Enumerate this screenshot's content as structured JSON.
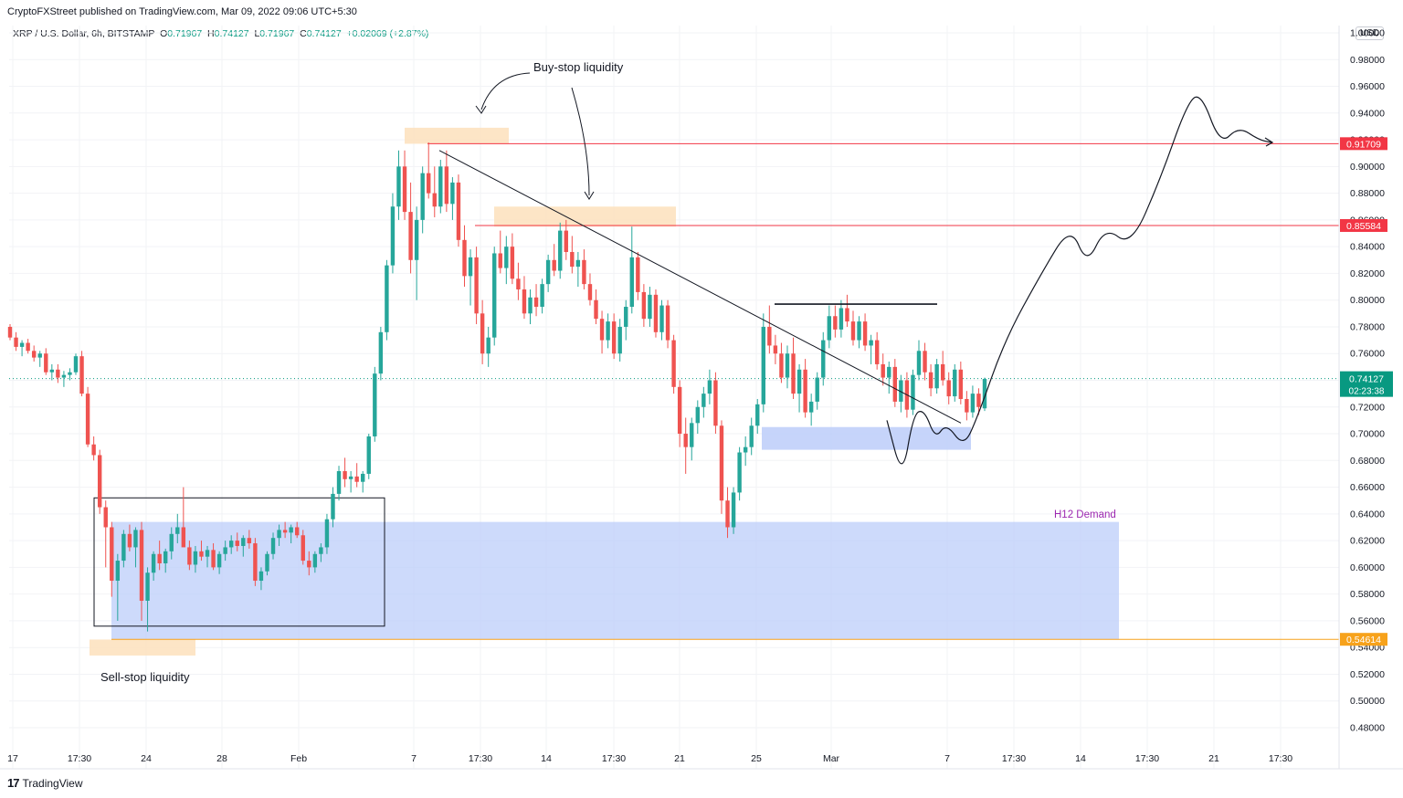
{
  "header": {
    "published_by": "CryptoFXStreet published on TradingView.com, Mar 09, 2022 09:06 UTC+5:30"
  },
  "symbol": {
    "name": "XRP / U.S. Dollar, 6h, BITSTAMP",
    "open_label": "O",
    "open": "0.71967",
    "high_label": "H",
    "high": "0.74127",
    "low_label": "L",
    "low": "0.71967",
    "close_label": "C",
    "close": "0.74127",
    "change": "+0.02069 (+2.87%)"
  },
  "currency_badge": "USD",
  "footer": {
    "brand": "TradingView",
    "logo_icon": "tradingview-logo-icon"
  },
  "colors": {
    "up": "#26a69a",
    "down": "#ef5350",
    "level_red": "#f23645",
    "level_orange": "#f7a21b",
    "demand_fill": "#bccdf9",
    "liquidity_fill": "#fde2c0",
    "current_price": "#089981",
    "h12_label": "#9c27b0"
  },
  "chart_data": {
    "type": "candlestick",
    "title": "XRP / U.S. Dollar, 6h, BITSTAMP",
    "ylim": [
      0.47,
      1.0
    ],
    "y_ticks": [
      "0.48000",
      "0.50000",
      "0.52000",
      "0.54000",
      "0.56000",
      "0.58000",
      "0.60000",
      "0.62000",
      "0.64000",
      "0.66000",
      "0.68000",
      "0.70000",
      "0.72000",
      "0.74000",
      "0.76000",
      "0.78000",
      "0.80000",
      "0.82000",
      "0.84000",
      "0.86000",
      "0.88000",
      "0.90000",
      "0.92000",
      "0.94000",
      "0.96000",
      "0.98000",
      "1.00000"
    ],
    "x_ticks": [
      "17",
      "17:30",
      "24",
      "28",
      "Feb",
      "7",
      "17:30",
      "14",
      "17:30",
      "21",
      "25",
      "Mar",
      "7",
      "17:30",
      "14",
      "17:30",
      "21",
      "17:30"
    ],
    "price_levels": [
      {
        "label": "0.91709",
        "value": 0.91709,
        "color": "#f23645"
      },
      {
        "label": "0.85584",
        "value": 0.85584,
        "color": "#f23645"
      },
      {
        "label": "0.54614",
        "value": 0.54614,
        "color": "#f7a21b"
      }
    ],
    "current_price": {
      "label": "0.74127",
      "value": 0.74127,
      "countdown": "02:23:38"
    },
    "annotations": {
      "buy_stop": "Buy-stop liquidity",
      "sell_stop": "Sell-stop liquidity",
      "demand": "H12 Demand"
    },
    "zones": [
      {
        "name": "h12-demand",
        "y0": 0.546,
        "y1": 0.634,
        "bar0": 0,
        "bar1": 0
      },
      {
        "name": "small-demand",
        "y0": 0.688,
        "y1": 0.705
      },
      {
        "name": "buy-stop-top",
        "y0": 0.917,
        "y1": 0.929
      },
      {
        "name": "buy-stop-mid",
        "y0": 0.855,
        "y1": 0.87
      },
      {
        "name": "sell-stop",
        "y0": 0.534,
        "y1": 0.546
      }
    ],
    "candles": [
      [
        0.78,
        0.782,
        0.77,
        0.772
      ],
      [
        0.772,
        0.776,
        0.762,
        0.765
      ],
      [
        0.765,
        0.77,
        0.758,
        0.768
      ],
      [
        0.768,
        0.771,
        0.76,
        0.762
      ],
      [
        0.762,
        0.766,
        0.754,
        0.757
      ],
      [
        0.757,
        0.762,
        0.75,
        0.76
      ],
      [
        0.76,
        0.764,
        0.744,
        0.746
      ],
      [
        0.746,
        0.752,
        0.74,
        0.748
      ],
      [
        0.748,
        0.752,
        0.738,
        0.742
      ],
      [
        0.742,
        0.747,
        0.735,
        0.744
      ],
      [
        0.744,
        0.749,
        0.74,
        0.746
      ],
      [
        0.746,
        0.76,
        0.744,
        0.758
      ],
      [
        0.758,
        0.762,
        0.728,
        0.73
      ],
      [
        0.73,
        0.735,
        0.69,
        0.692
      ],
      [
        0.692,
        0.698,
        0.68,
        0.684
      ],
      [
        0.684,
        0.688,
        0.64,
        0.645
      ],
      [
        0.645,
        0.65,
        0.6,
        0.63
      ],
      [
        0.63,
        0.634,
        0.578,
        0.59
      ],
      [
        0.59,
        0.61,
        0.56,
        0.605
      ],
      [
        0.605,
        0.628,
        0.6,
        0.625
      ],
      [
        0.625,
        0.632,
        0.612,
        0.615
      ],
      [
        0.615,
        0.63,
        0.6,
        0.628
      ],
      [
        0.628,
        0.634,
        0.56,
        0.575
      ],
      [
        0.575,
        0.6,
        0.552,
        0.596
      ],
      [
        0.596,
        0.612,
        0.59,
        0.61
      ],
      [
        0.61,
        0.62,
        0.598,
        0.603
      ],
      [
        0.603,
        0.614,
        0.596,
        0.612
      ],
      [
        0.612,
        0.63,
        0.606,
        0.625
      ],
      [
        0.625,
        0.64,
        0.618,
        0.63
      ],
      [
        0.63,
        0.66,
        0.62,
        0.615
      ],
      [
        0.615,
        0.62,
        0.598,
        0.602
      ],
      [
        0.602,
        0.616,
        0.596,
        0.612
      ],
      [
        0.612,
        0.62,
        0.605,
        0.608
      ],
      [
        0.608,
        0.616,
        0.6,
        0.613
      ],
      [
        0.613,
        0.618,
        0.598,
        0.6
      ],
      [
        0.6,
        0.612,
        0.595,
        0.61
      ],
      [
        0.61,
        0.62,
        0.605,
        0.615
      ],
      [
        0.615,
        0.624,
        0.61,
        0.62
      ],
      [
        0.62,
        0.626,
        0.612,
        0.616
      ],
      [
        0.616,
        0.624,
        0.608,
        0.622
      ],
      [
        0.622,
        0.628,
        0.614,
        0.618
      ],
      [
        0.618,
        0.622,
        0.586,
        0.59
      ],
      [
        0.59,
        0.6,
        0.583,
        0.597
      ],
      [
        0.597,
        0.612,
        0.594,
        0.61
      ],
      [
        0.61,
        0.626,
        0.606,
        0.622
      ],
      [
        0.622,
        0.632,
        0.616,
        0.628
      ],
      [
        0.628,
        0.634,
        0.622,
        0.626
      ],
      [
        0.626,
        0.632,
        0.618,
        0.63
      ],
      [
        0.63,
        0.634,
        0.622,
        0.624
      ],
      [
        0.624,
        0.628,
        0.602,
        0.605
      ],
      [
        0.605,
        0.612,
        0.594,
        0.6
      ],
      [
        0.6,
        0.612,
        0.596,
        0.61
      ],
      [
        0.61,
        0.618,
        0.604,
        0.615
      ],
      [
        0.615,
        0.64,
        0.61,
        0.636
      ],
      [
        0.636,
        0.66,
        0.63,
        0.655
      ],
      [
        0.655,
        0.676,
        0.65,
        0.672
      ],
      [
        0.672,
        0.682,
        0.66,
        0.666
      ],
      [
        0.666,
        0.672,
        0.656,
        0.668
      ],
      [
        0.668,
        0.678,
        0.66,
        0.664
      ],
      [
        0.664,
        0.672,
        0.656,
        0.67
      ],
      [
        0.67,
        0.7,
        0.666,
        0.698
      ],
      [
        0.698,
        0.75,
        0.694,
        0.745
      ],
      [
        0.745,
        0.78,
        0.74,
        0.776
      ],
      [
        0.776,
        0.83,
        0.77,
        0.826
      ],
      [
        0.826,
        0.88,
        0.82,
        0.87
      ],
      [
        0.87,
        0.912,
        0.86,
        0.9
      ],
      [
        0.9,
        0.912,
        0.86,
        0.866
      ],
      [
        0.866,
        0.888,
        0.82,
        0.83
      ],
      [
        0.83,
        0.87,
        0.8,
        0.86
      ],
      [
        0.86,
        0.9,
        0.85,
        0.895
      ],
      [
        0.895,
        0.918,
        0.876,
        0.88
      ],
      [
        0.88,
        0.9,
        0.862,
        0.87
      ],
      [
        0.87,
        0.905,
        0.865,
        0.9
      ],
      [
        0.9,
        0.912,
        0.866,
        0.872
      ],
      [
        0.872,
        0.892,
        0.86,
        0.888
      ],
      [
        0.888,
        0.894,
        0.84,
        0.845
      ],
      [
        0.845,
        0.856,
        0.81,
        0.818
      ],
      [
        0.818,
        0.838,
        0.796,
        0.832
      ],
      [
        0.832,
        0.84,
        0.782,
        0.79
      ],
      [
        0.79,
        0.8,
        0.752,
        0.76
      ],
      [
        0.76,
        0.78,
        0.75,
        0.772
      ],
      [
        0.772,
        0.84,
        0.766,
        0.835
      ],
      [
        0.835,
        0.852,
        0.82,
        0.824
      ],
      [
        0.824,
        0.848,
        0.812,
        0.84
      ],
      [
        0.84,
        0.85,
        0.812,
        0.816
      ],
      [
        0.816,
        0.828,
        0.8,
        0.808
      ],
      [
        0.808,
        0.818,
        0.786,
        0.79
      ],
      [
        0.79,
        0.808,
        0.782,
        0.802
      ],
      [
        0.802,
        0.812,
        0.788,
        0.795
      ],
      [
        0.795,
        0.816,
        0.79,
        0.812
      ],
      [
        0.812,
        0.834,
        0.806,
        0.83
      ],
      [
        0.83,
        0.842,
        0.818,
        0.822
      ],
      [
        0.822,
        0.858,
        0.816,
        0.852
      ],
      [
        0.852,
        0.86,
        0.83,
        0.836
      ],
      [
        0.836,
        0.848,
        0.82,
        0.825
      ],
      [
        0.825,
        0.836,
        0.81,
        0.83
      ],
      [
        0.83,
        0.838,
        0.808,
        0.812
      ],
      [
        0.812,
        0.82,
        0.796,
        0.8
      ],
      [
        0.8,
        0.808,
        0.782,
        0.786
      ],
      [
        0.786,
        0.792,
        0.76,
        0.77
      ],
      [
        0.77,
        0.79,
        0.764,
        0.784
      ],
      [
        0.784,
        0.79,
        0.756,
        0.76
      ],
      [
        0.76,
        0.786,
        0.754,
        0.78
      ],
      [
        0.78,
        0.8,
        0.77,
        0.795
      ],
      [
        0.795,
        0.855,
        0.79,
        0.832
      ],
      [
        0.832,
        0.836,
        0.8,
        0.806
      ],
      [
        0.806,
        0.812,
        0.78,
        0.786
      ],
      [
        0.786,
        0.81,
        0.78,
        0.804
      ],
      [
        0.804,
        0.808,
        0.772,
        0.776
      ],
      [
        0.776,
        0.8,
        0.77,
        0.796
      ],
      [
        0.796,
        0.8,
        0.764,
        0.77
      ],
      [
        0.77,
        0.774,
        0.73,
        0.735
      ],
      [
        0.735,
        0.74,
        0.69,
        0.7
      ],
      [
        0.7,
        0.712,
        0.67,
        0.69
      ],
      [
        0.69,
        0.712,
        0.68,
        0.708
      ],
      [
        0.708,
        0.725,
        0.7,
        0.72
      ],
      [
        0.72,
        0.735,
        0.712,
        0.73
      ],
      [
        0.73,
        0.748,
        0.722,
        0.74
      ],
      [
        0.74,
        0.746,
        0.7,
        0.706
      ],
      [
        0.706,
        0.71,
        0.64,
        0.65
      ],
      [
        0.65,
        0.66,
        0.622,
        0.63
      ],
      [
        0.63,
        0.66,
        0.625,
        0.656
      ],
      [
        0.656,
        0.69,
        0.65,
        0.686
      ],
      [
        0.686,
        0.698,
        0.676,
        0.69
      ],
      [
        0.69,
        0.712,
        0.684,
        0.706
      ],
      [
        0.706,
        0.726,
        0.7,
        0.722
      ],
      [
        0.722,
        0.79,
        0.716,
        0.78
      ],
      [
        0.78,
        0.796,
        0.76,
        0.766
      ],
      [
        0.766,
        0.774,
        0.752,
        0.76
      ],
      [
        0.76,
        0.768,
        0.738,
        0.742
      ],
      [
        0.742,
        0.766,
        0.734,
        0.76
      ],
      [
        0.76,
        0.772,
        0.726,
        0.73
      ],
      [
        0.73,
        0.752,
        0.716,
        0.748
      ],
      [
        0.748,
        0.756,
        0.712,
        0.716
      ],
      [
        0.716,
        0.73,
        0.706,
        0.724
      ],
      [
        0.724,
        0.746,
        0.718,
        0.742
      ],
      [
        0.742,
        0.776,
        0.736,
        0.77
      ],
      [
        0.77,
        0.796,
        0.764,
        0.788
      ],
      [
        0.788,
        0.796,
        0.772,
        0.778
      ],
      [
        0.778,
        0.8,
        0.772,
        0.794
      ],
      [
        0.794,
        0.804,
        0.78,
        0.784
      ],
      [
        0.784,
        0.792,
        0.766,
        0.77
      ],
      [
        0.77,
        0.788,
        0.764,
        0.784
      ],
      [
        0.784,
        0.79,
        0.762,
        0.766
      ],
      [
        0.766,
        0.774,
        0.752,
        0.77
      ],
      [
        0.77,
        0.776,
        0.748,
        0.752
      ],
      [
        0.752,
        0.76,
        0.736,
        0.742
      ],
      [
        0.742,
        0.754,
        0.73,
        0.75
      ],
      [
        0.75,
        0.756,
        0.72,
        0.724
      ],
      [
        0.724,
        0.744,
        0.716,
        0.74
      ],
      [
        0.74,
        0.746,
        0.712,
        0.718
      ],
      [
        0.718,
        0.748,
        0.714,
        0.744
      ],
      [
        0.744,
        0.77,
        0.74,
        0.762
      ],
      [
        0.762,
        0.768,
        0.74,
        0.746
      ],
      [
        0.746,
        0.752,
        0.728,
        0.734
      ],
      [
        0.734,
        0.756,
        0.73,
        0.752
      ],
      [
        0.752,
        0.762,
        0.736,
        0.74
      ],
      [
        0.74,
        0.746,
        0.722,
        0.728
      ],
      [
        0.728,
        0.752,
        0.724,
        0.748
      ],
      [
        0.748,
        0.754,
        0.722,
        0.726
      ],
      [
        0.726,
        0.732,
        0.71,
        0.716
      ],
      [
        0.716,
        0.736,
        0.712,
        0.73
      ],
      [
        0.73,
        0.734,
        0.714,
        0.72
      ],
      [
        0.719,
        0.742,
        0.717,
        0.741
      ]
    ],
    "projection_path": "decline to ~0.665 in demand zone, rally through 0.85584, peak near 0.955, settle at 0.91709"
  }
}
